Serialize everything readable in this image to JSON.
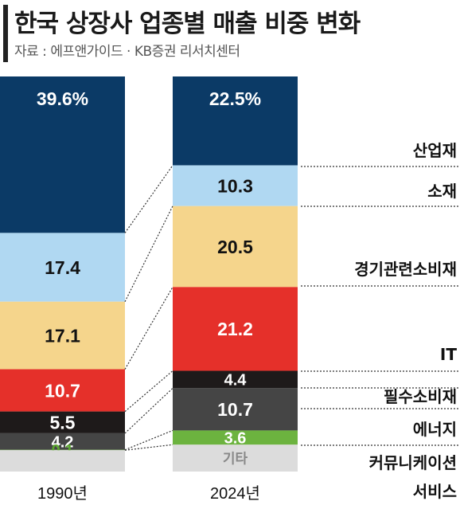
{
  "title": "한국 상장사 업종별 매출 비중 변화",
  "source": "자료 : 에프앤가이드 · KB증권 리서치센터",
  "colors": {
    "industrials": "#0b3a66",
    "materials": "#b0d8f2",
    "consumer_discretionary": "#f5d58c",
    "it": "#e5302a",
    "consumer_staples": "#1e1a1a",
    "energy": "#454545",
    "communication": "#6cb33f",
    "other": "#dcdcdc"
  },
  "chart_data": {
    "type": "bar",
    "stacked": true,
    "unit": "%",
    "categories": [
      "1990년",
      "2024년"
    ],
    "series": [
      {
        "name": "산업재",
        "key": "industrials",
        "values": [
          39.6,
          22.5
        ],
        "labels": [
          "39.6%",
          "22.5%"
        ]
      },
      {
        "name": "소재",
        "key": "materials",
        "values": [
          17.4,
          10.3
        ],
        "labels": [
          "17.4",
          "10.3"
        ]
      },
      {
        "name": "경기관련소비재",
        "key": "consumer_discretionary",
        "values": [
          17.1,
          20.5
        ],
        "labels": [
          "17.1",
          "20.5"
        ]
      },
      {
        "name": "IT",
        "key": "it",
        "values": [
          10.7,
          21.2
        ],
        "labels": [
          "10.7",
          "21.2"
        ]
      },
      {
        "name": "필수소비재",
        "key": "consumer_staples",
        "values": [
          5.5,
          4.4
        ],
        "labels": [
          "5.5",
          "4.4"
        ]
      },
      {
        "name": "에너지",
        "key": "energy",
        "values": [
          4.2,
          10.7
        ],
        "labels": [
          "4.2",
          "10.7"
        ]
      },
      {
        "name": "커뮤니케이션 서비스",
        "key": "communication",
        "values": [
          0.1,
          3.6
        ],
        "labels": [
          "0.1",
          "3.6"
        ]
      },
      {
        "name": "기타",
        "key": "other",
        "values": [
          5.4,
          6.8
        ],
        "labels": [
          "",
          "기타"
        ]
      }
    ],
    "category_labels": [
      "산업재",
      "소재",
      "경기관련소비재",
      "IT",
      "필수소비재",
      "에너지",
      "커뮤니케이션",
      "서비스"
    ]
  }
}
